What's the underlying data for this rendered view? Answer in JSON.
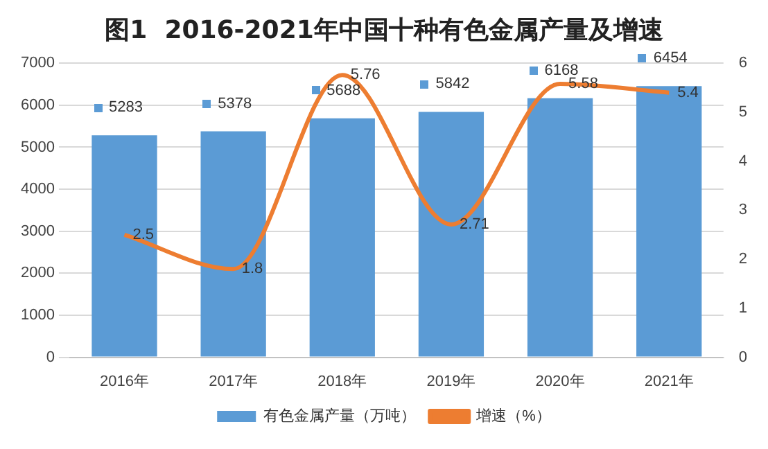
{
  "chart_data": {
    "type": "bar",
    "title": "图1  2016-2021年中国十种有色金属产量及增速",
    "categories": [
      "2016年",
      "2017年",
      "2018年",
      "2019年",
      "2020年",
      "2021年"
    ],
    "series": [
      {
        "name": "有色金属产量（万吨）",
        "color": "#5b9bd5",
        "values": [
          5283,
          5378,
          5688,
          5842,
          6168,
          6454
        ]
      },
      {
        "name": "增速（%）",
        "type": "line",
        "axis": "y2",
        "color": "#ed7d31",
        "values": [
          2.5,
          1.8,
          5.76,
          2.71,
          5.58,
          5.4
        ]
      }
    ],
    "ylim": [
      0,
      7000
    ],
    "yticks": [
      0,
      1000,
      2000,
      3000,
      4000,
      5000,
      6000,
      7000
    ],
    "y2lim": [
      0,
      6
    ],
    "y2ticks": [
      0,
      1,
      2,
      3,
      4,
      5,
      6
    ],
    "grid": "y",
    "legend": "bottom",
    "data_labels": true,
    "marker": "none"
  }
}
